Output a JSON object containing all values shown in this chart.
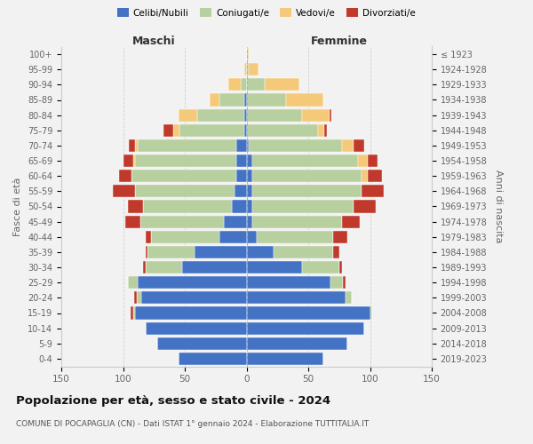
{
  "age_groups": [
    "0-4",
    "5-9",
    "10-14",
    "15-19",
    "20-24",
    "25-29",
    "30-34",
    "35-39",
    "40-44",
    "45-49",
    "50-54",
    "55-59",
    "60-64",
    "65-69",
    "70-74",
    "75-79",
    "80-84",
    "85-89",
    "90-94",
    "95-99",
    "100+"
  ],
  "birth_years": [
    "2019-2023",
    "2014-2018",
    "2009-2013",
    "2004-2008",
    "1999-2003",
    "1994-1998",
    "1989-1993",
    "1984-1988",
    "1979-1983",
    "1974-1978",
    "1969-1973",
    "1964-1968",
    "1959-1963",
    "1954-1958",
    "1949-1953",
    "1944-1948",
    "1939-1943",
    "1934-1938",
    "1929-1933",
    "1924-1928",
    "≤ 1923"
  ],
  "colors": {
    "celibe": "#4472c4",
    "coniugato": "#b8cfa0",
    "vedovo": "#f5c97a",
    "divorziato": "#c0392b"
  },
  "males": {
    "celibe": [
      55,
      72,
      82,
      90,
      85,
      88,
      52,
      42,
      22,
      18,
      12,
      10,
      8,
      8,
      8,
      2,
      2,
      2,
      0,
      0,
      0
    ],
    "coniugato": [
      0,
      0,
      0,
      2,
      4,
      8,
      30,
      38,
      55,
      68,
      72,
      80,
      85,
      82,
      80,
      52,
      38,
      20,
      5,
      0,
      0
    ],
    "vedovo": [
      0,
      0,
      0,
      0,
      0,
      0,
      0,
      0,
      0,
      0,
      0,
      0,
      0,
      2,
      2,
      5,
      15,
      8,
      10,
      2,
      0
    ],
    "divorziato": [
      0,
      0,
      0,
      2,
      2,
      0,
      2,
      2,
      5,
      12,
      12,
      18,
      10,
      8,
      5,
      8,
      0,
      0,
      0,
      0,
      0
    ]
  },
  "females": {
    "nubile": [
      62,
      82,
      95,
      100,
      80,
      68,
      45,
      22,
      8,
      5,
      5,
      5,
      5,
      5,
      2,
      0,
      0,
      0,
      0,
      0,
      0
    ],
    "coniugata": [
      0,
      0,
      0,
      2,
      5,
      10,
      30,
      48,
      62,
      72,
      82,
      88,
      88,
      85,
      75,
      58,
      45,
      32,
      15,
      2,
      0
    ],
    "vedova": [
      0,
      0,
      0,
      0,
      0,
      0,
      0,
      0,
      0,
      0,
      0,
      0,
      5,
      8,
      10,
      5,
      22,
      30,
      28,
      8,
      2
    ],
    "divorziata": [
      0,
      0,
      0,
      0,
      0,
      2,
      2,
      5,
      12,
      15,
      18,
      18,
      12,
      8,
      8,
      2,
      2,
      0,
      0,
      0,
      0
    ]
  },
  "title": "Popolazione per età, sesso e stato civile - 2024",
  "subtitle": "COMUNE DI POCAPAGLIA (CN) - Dati ISTAT 1° gennaio 2024 - Elaborazione TUTTITALIA.IT",
  "xlabel_left": "Maschi",
  "xlabel_right": "Femmine",
  "ylabel_left": "Fasce di età",
  "ylabel_right": "Anni di nascita",
  "xlim": 150
}
